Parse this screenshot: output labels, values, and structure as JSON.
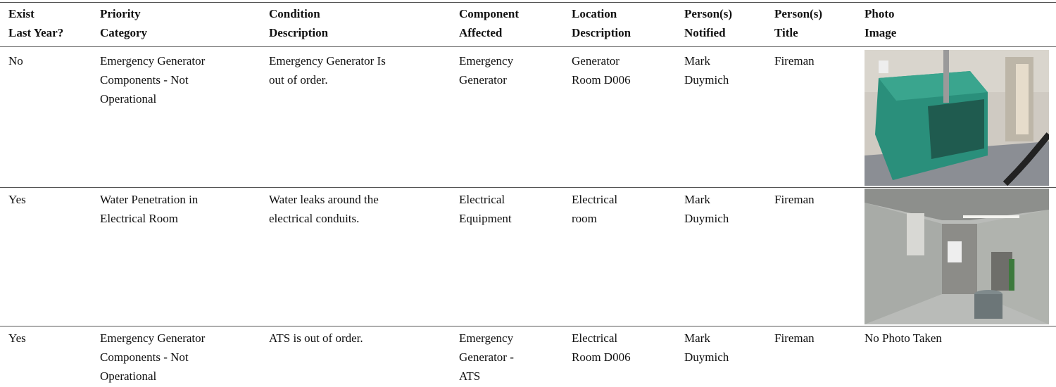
{
  "table": {
    "header": [
      [
        "Exist",
        "Last Year?"
      ],
      [
        "Priority",
        "Category"
      ],
      [
        "Condition",
        "Description"
      ],
      [
        "Component",
        "Affected"
      ],
      [
        "Location",
        "Description"
      ],
      [
        "Person(s)",
        "Notified"
      ],
      [
        "Person(s)",
        "Title"
      ],
      [
        "Photo",
        "Image"
      ]
    ],
    "rows": [
      [
        [
          "No"
        ],
        [
          "Emergency Generator",
          "Components - Not",
          "Operational"
        ],
        [
          "Emergency Generator Is",
          "out of order."
        ],
        [
          "Emergency",
          "Generator"
        ],
        [
          "Generator",
          "Room D006"
        ],
        [
          "Mark",
          "Duymich"
        ],
        [
          "Fireman"
        ]
      ],
      [
        [
          "Yes"
        ],
        [
          "Water Penetration in",
          "Electrical Room"
        ],
        [
          "Water leaks around the",
          "electrical conduits."
        ],
        [
          "Electrical",
          "Equipment"
        ],
        [
          "Electrical",
          "room"
        ],
        [
          "Mark",
          "Duymich"
        ],
        [
          "Fireman"
        ]
      ],
      [
        [
          "Yes"
        ],
        [
          "Emergency Generator",
          "Components - Not",
          "Operational"
        ],
        [
          "ATS is out of order."
        ],
        [
          "Emergency",
          "Generator -",
          "ATS"
        ],
        [
          "Electrical",
          "Room D006"
        ],
        [
          "Mark",
          "Duymich"
        ],
        [
          "Fireman"
        ],
        [
          "No Photo Taken"
        ]
      ]
    ]
  }
}
